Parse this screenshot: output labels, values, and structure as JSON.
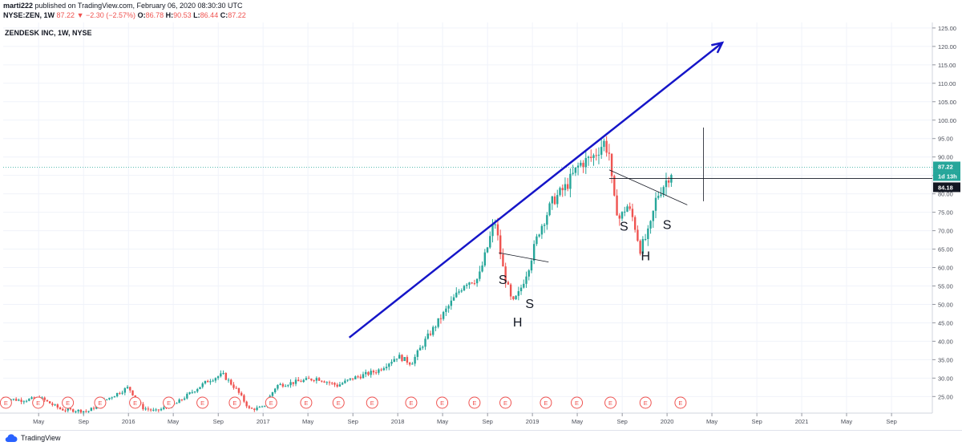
{
  "header": {
    "author": "marti222",
    "published_text": "published on TradingView.com, February 06, 2020 08:30:30 UTC",
    "symbol_line": "NYSE:ZEN, 1W",
    "last": "87.22",
    "change_arrow": "▼",
    "change": "−2.30 (−2.57%)",
    "o_label": "O:",
    "o_value": "86.78",
    "h_label": "H:",
    "h_value": "90.53",
    "l_label": "L:",
    "l_value": "86.44",
    "c_label": "C:",
    "c_value": "87.22"
  },
  "footer": {
    "brand": "TradingView"
  },
  "colors": {
    "up": "#26a69a",
    "down": "#ef5350",
    "trendline": "#1515c8",
    "earnings": "#ef5350",
    "price_tag": "#26a69a",
    "countdown_tag": "#26a69a",
    "level_tag": "#131722",
    "grid": "#f0f3fa"
  },
  "chart_data": {
    "type": "candlestick",
    "title": "ZENDESK INC, 1W, NYSE",
    "y_axis": {
      "ticks": [
        "125.00",
        "120.00",
        "115.00",
        "110.00",
        "105.00",
        "100.00",
        "95.00",
        "90.00",
        "85.00",
        "80.00",
        "75.00",
        "70.00",
        "65.00",
        "60.00",
        "55.00",
        "50.00",
        "45.00",
        "40.00",
        "35.00",
        "30.00",
        "25.00"
      ],
      "range": [
        20.5,
        126.5
      ]
    },
    "x_axis": {
      "ticks": [
        {
          "label": "May",
          "t": 2015.333
        },
        {
          "label": "Sep",
          "t": 2015.667
        },
        {
          "label": "2016",
          "t": 2016.0
        },
        {
          "label": "May",
          "t": 2016.333
        },
        {
          "label": "Sep",
          "t": 2016.667
        },
        {
          "label": "2017",
          "t": 2017.0
        },
        {
          "label": "May",
          "t": 2017.333
        },
        {
          "label": "Sep",
          "t": 2017.667
        },
        {
          "label": "2018",
          "t": 2018.0
        },
        {
          "label": "May",
          "t": 2018.333
        },
        {
          "label": "Sep",
          "t": 2018.667
        },
        {
          "label": "2019",
          "t": 2019.0
        },
        {
          "label": "May",
          "t": 2019.333
        },
        {
          "label": "Sep",
          "t": 2019.667
        },
        {
          "label": "2020",
          "t": 2020.0
        },
        {
          "label": "May",
          "t": 2020.333
        },
        {
          "label": "Sep",
          "t": 2020.667
        },
        {
          "label": "2021",
          "t": 2021.0
        },
        {
          "label": "May",
          "t": 2021.333
        },
        {
          "label": "Sep",
          "t": 2021.667
        }
      ],
      "range": [
        2015.07,
        2021.97
      ]
    },
    "price_path": [
      [
        2015.07,
        24.5
      ],
      [
        2015.2,
        24
      ],
      [
        2015.35,
        24.5
      ],
      [
        2015.5,
        21.5
      ],
      [
        2015.7,
        21
      ],
      [
        2015.85,
        24.5
      ],
      [
        2016.0,
        27.5
      ],
      [
        2016.1,
        22
      ],
      [
        2016.2,
        21
      ],
      [
        2016.35,
        23
      ],
      [
        2016.5,
        27
      ],
      [
        2016.6,
        29.5
      ],
      [
        2016.7,
        31
      ],
      [
        2016.8,
        27
      ],
      [
        2016.9,
        21.5
      ],
      [
        2017.0,
        22
      ],
      [
        2017.1,
        28
      ],
      [
        2017.25,
        29
      ],
      [
        2017.4,
        30
      ],
      [
        2017.55,
        28
      ],
      [
        2017.67,
        30
      ],
      [
        2017.85,
        32
      ],
      [
        2018.0,
        36
      ],
      [
        2018.1,
        34
      ],
      [
        2018.2,
        40
      ],
      [
        2018.35,
        48
      ],
      [
        2018.5,
        56
      ],
      [
        2018.6,
        57
      ],
      [
        2018.67,
        66
      ],
      [
        2018.72,
        73
      ],
      [
        2018.78,
        60
      ],
      [
        2018.85,
        50
      ],
      [
        2018.9,
        53
      ],
      [
        2018.97,
        60
      ],
      [
        2019.05,
        70
      ],
      [
        2019.15,
        78
      ],
      [
        2019.25,
        82
      ],
      [
        2019.35,
        88
      ],
      [
        2019.45,
        90
      ],
      [
        2019.53,
        94
      ],
      [
        2019.57,
        91
      ],
      [
        2019.6,
        79
      ],
      [
        2019.65,
        73
      ],
      [
        2019.7,
        77
      ],
      [
        2019.75,
        73
      ],
      [
        2019.8,
        65
      ],
      [
        2019.87,
        70
      ],
      [
        2019.92,
        79
      ],
      [
        2020.0,
        84
      ],
      [
        2020.05,
        87.22
      ]
    ],
    "current_price": 87.22,
    "countdown": "1d 13h",
    "level": 84.18,
    "earnings_marker": "E",
    "earnings_dates": [
      2015.09,
      2015.33,
      2015.55,
      2015.79,
      2016.05,
      2016.3,
      2016.55,
      2016.79,
      2017.06,
      2017.32,
      2017.56,
      2017.81,
      2018.1,
      2018.33,
      2018.57,
      2018.8,
      2019.1,
      2019.33,
      2019.58,
      2019.84,
      2020.1
    ],
    "annotations": [
      {
        "text": "S",
        "t": 2018.78,
        "price": 55.5
      },
      {
        "text": "S",
        "t": 2018.98,
        "price": 49
      },
      {
        "text": "H",
        "t": 2018.89,
        "price": 44
      },
      {
        "text": "S",
        "t": 2019.68,
        "price": 70
      },
      {
        "text": "S",
        "t": 2020.0,
        "price": 70.5
      },
      {
        "text": "H",
        "t": 2019.84,
        "price": 62
      }
    ],
    "drawings": {
      "trend_arrow": {
        "from": [
          2017.64,
          41
        ],
        "to": [
          2020.41,
          121
        ]
      },
      "neckline_1": {
        "from": [
          2018.75,
          64
        ],
        "to": [
          2019.12,
          61.5
        ]
      },
      "neckline_2": {
        "from": [
          2019.57,
          86.5
        ],
        "to": [
          2020.15,
          77
        ]
      },
      "vertical_line": {
        "t": 2020.27,
        "from": 78,
        "to": 98
      }
    }
  }
}
